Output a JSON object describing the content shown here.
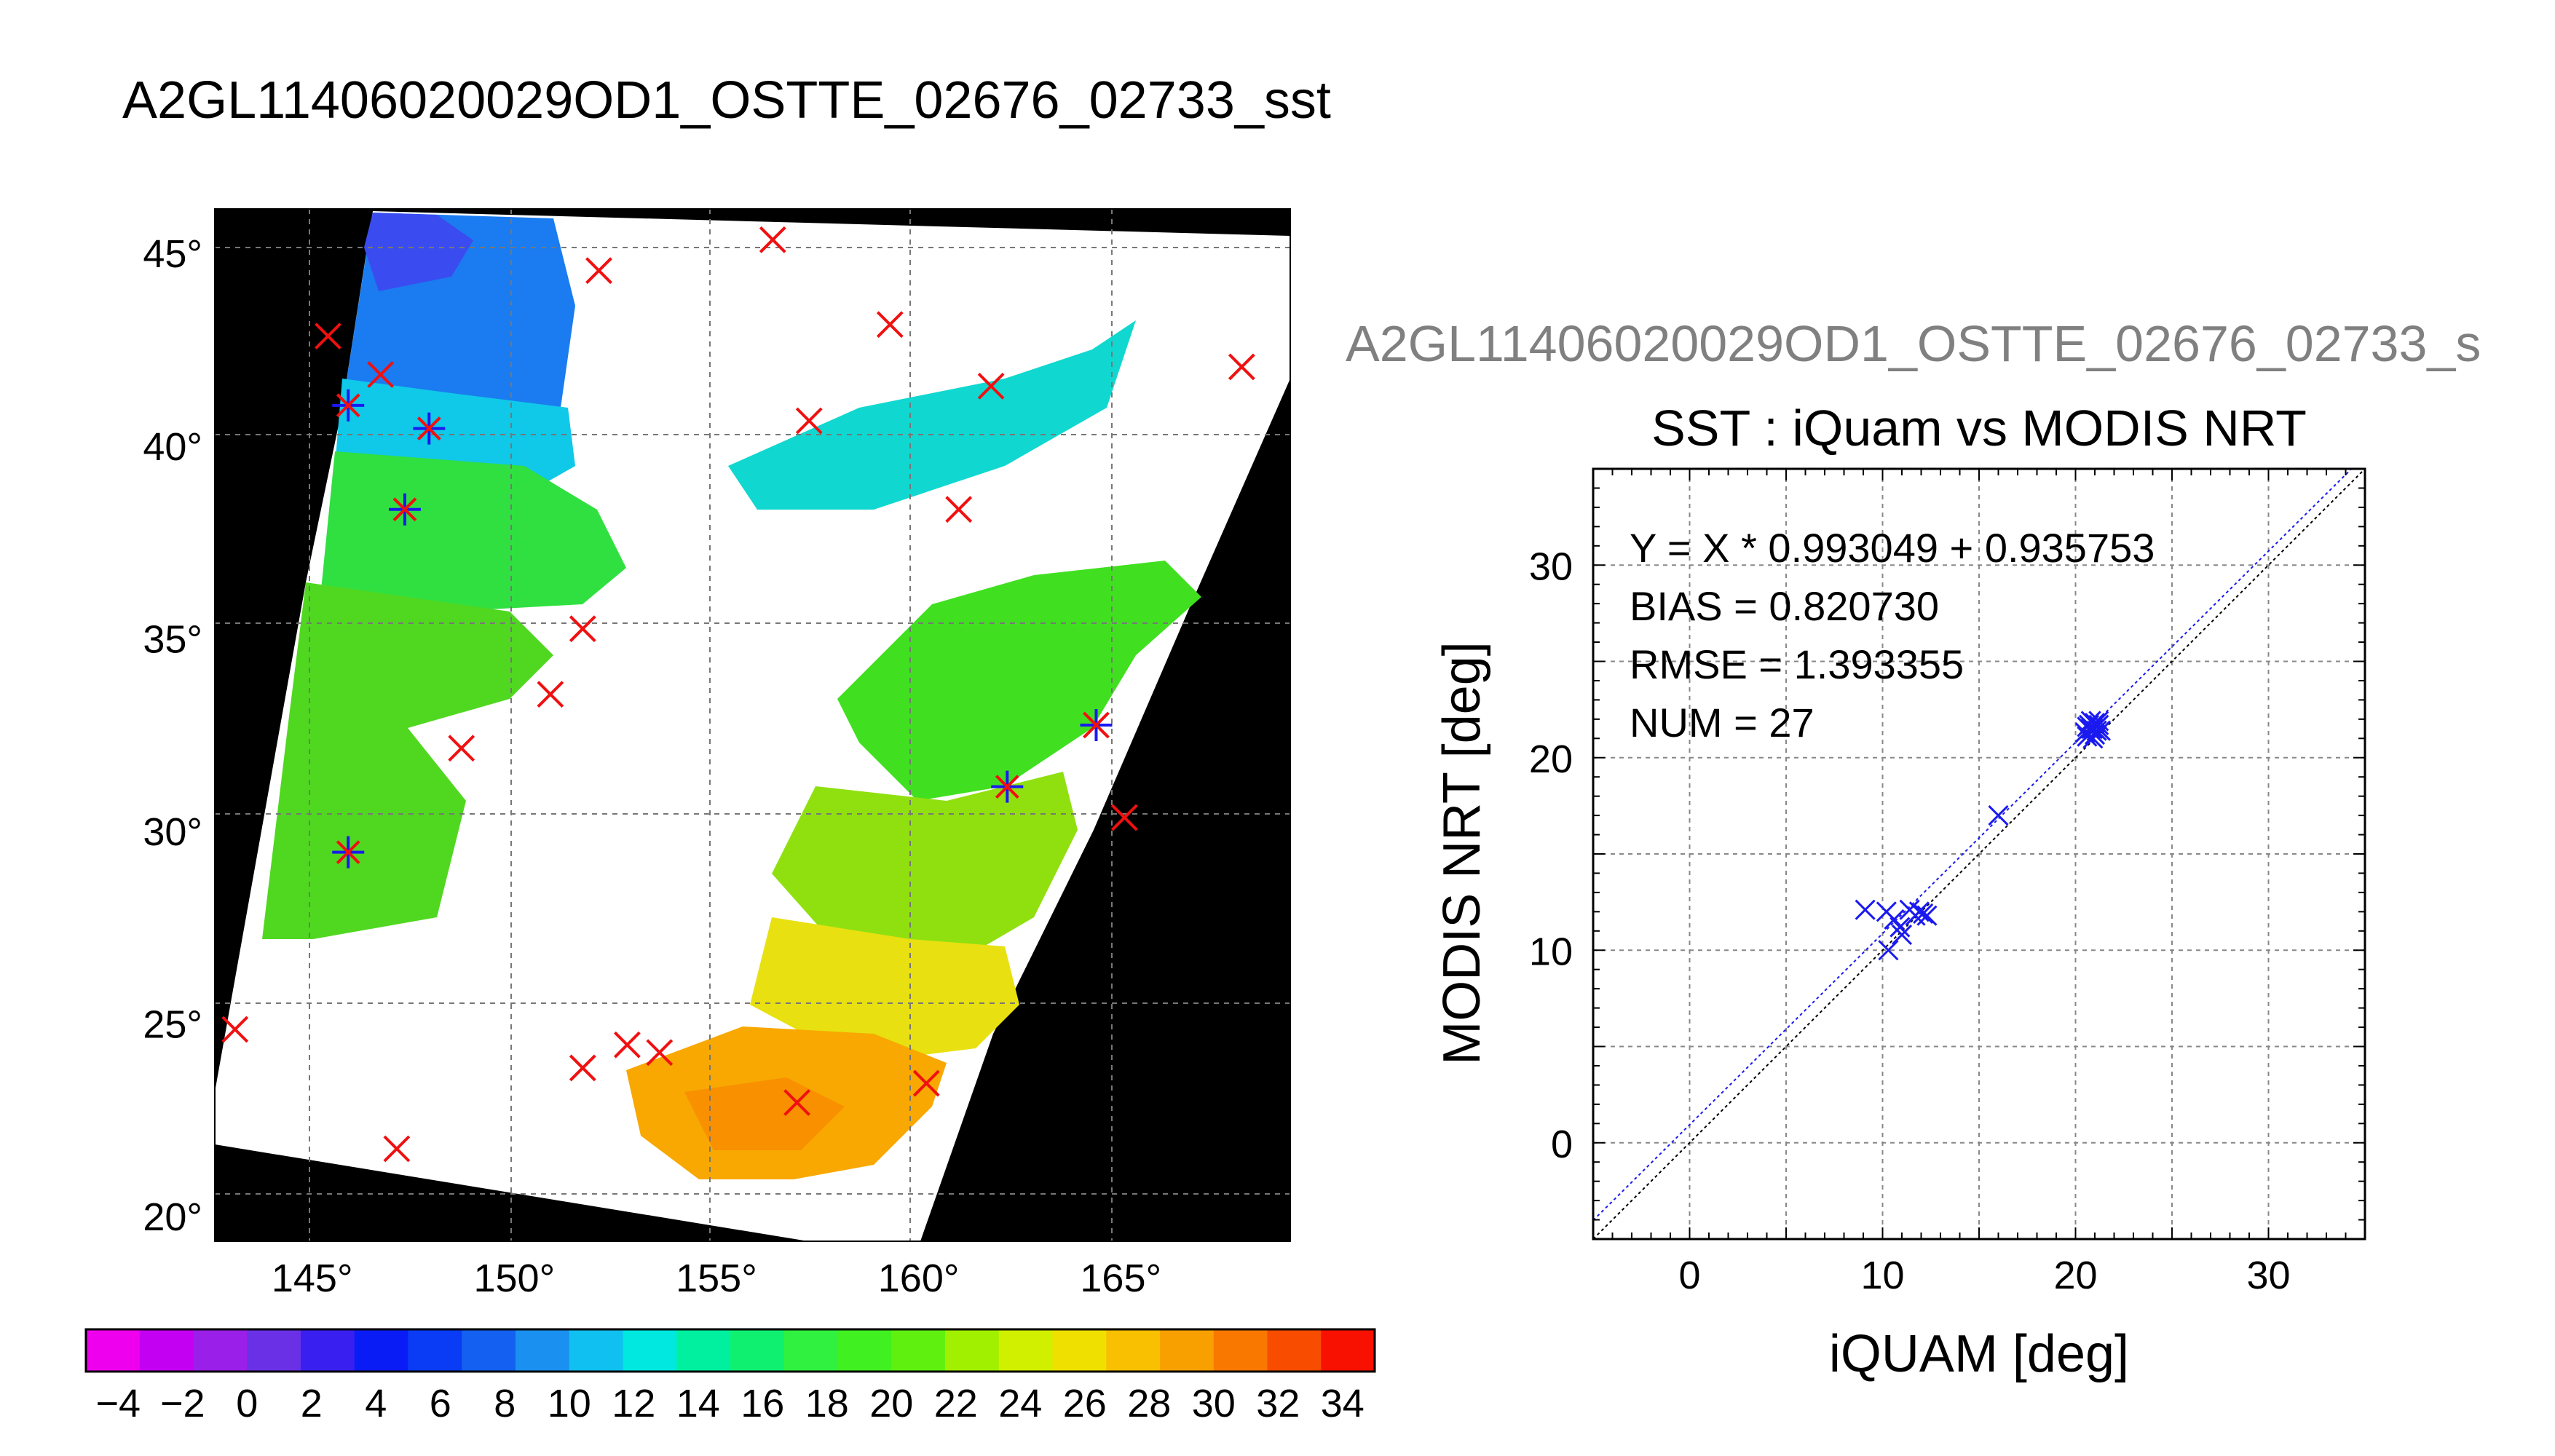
{
  "main_title": "A2GL11406020029OD1_OSTTE_02676_02733_sst",
  "map": {
    "lat_ticks": [
      45,
      40,
      35,
      30,
      25,
      20
    ],
    "lon_ticks": [
      145,
      150,
      155,
      160,
      165
    ],
    "lat_range": [
      19.3,
      46.1
    ],
    "lon_range": [
      142.7,
      169.3
    ],
    "matchups_red": [
      [
        143.2,
        24.8
      ],
      [
        145.5,
        42.8
      ],
      [
        146.8,
        41.8
      ],
      [
        147.2,
        21.7
      ],
      [
        148.8,
        32.1
      ],
      [
        151.0,
        33.5
      ],
      [
        151.8,
        35.2
      ],
      [
        151.8,
        23.8
      ],
      [
        152.2,
        44.5
      ],
      [
        152.9,
        24.4
      ],
      [
        153.7,
        24.2
      ],
      [
        156.5,
        45.3
      ],
      [
        157.1,
        22.9
      ],
      [
        157.4,
        40.6
      ],
      [
        159.4,
        43.1
      ],
      [
        160.3,
        23.4
      ],
      [
        161.1,
        38.3
      ],
      [
        161.9,
        41.5
      ],
      [
        164.5,
        32.7
      ],
      [
        165.2,
        30.3
      ],
      [
        168.1,
        42.0
      ]
    ],
    "matchups_blue": [
      [
        146.0,
        41.0
      ],
      [
        146.0,
        29.4
      ],
      [
        147.4,
        38.3
      ],
      [
        148.0,
        40.4
      ],
      [
        162.3,
        31.1
      ],
      [
        164.5,
        32.7
      ]
    ]
  },
  "colorbar": {
    "tick_labels": [
      "−4",
      "−2",
      "0",
      "2",
      "4",
      "6",
      "8",
      "10",
      "12",
      "14",
      "16",
      "18",
      "20",
      "22",
      "24",
      "26",
      "28",
      "30",
      "32",
      "34"
    ],
    "min": -5,
    "max": 35,
    "colors": [
      "#ee00ee",
      "#c400f2",
      "#9a1fe8",
      "#6a30e6",
      "#3a20f0",
      "#0a1cf5",
      "#0a3cf5",
      "#1460f0",
      "#1a90f0",
      "#10c0f0",
      "#00e8e0",
      "#00f0a0",
      "#10f070",
      "#30f040",
      "#40f020",
      "#60f010",
      "#a0f000",
      "#d0f000",
      "#f0e000",
      "#f8c000",
      "#f8a000",
      "#f87800",
      "#f84c00",
      "#f81000"
    ]
  },
  "scatter_header": "A2GL11406020029OD1_OSTTE_02676_02733_s",
  "chart_data": {
    "type": "scatter",
    "title": "SST : iQuam vs MODIS NRT",
    "xlabel": "iQUAM [deg]",
    "ylabel": "MODIS NRT [deg]",
    "xlim": [
      -5,
      35
    ],
    "ylim": [
      -5,
      35
    ],
    "x_ticks": [
      0,
      10,
      20,
      30
    ],
    "y_ticks": [
      0,
      10,
      20,
      30
    ],
    "grid": true,
    "points": [
      [
        9.1,
        12.1
      ],
      [
        10.2,
        12.0
      ],
      [
        10.6,
        11.6
      ],
      [
        10.9,
        11.2
      ],
      [
        10.3,
        10.0
      ],
      [
        11.0,
        10.8
      ],
      [
        11.4,
        12.1
      ],
      [
        11.7,
        11.8
      ],
      [
        11.9,
        12.0
      ],
      [
        12.1,
        11.9
      ],
      [
        12.3,
        11.8
      ],
      [
        16.0,
        17.0
      ],
      [
        20.5,
        21.3
      ],
      [
        20.6,
        21.6
      ],
      [
        20.7,
        21.7
      ],
      [
        20.8,
        21.9
      ],
      [
        20.9,
        21.5
      ],
      [
        21.0,
        21.8
      ],
      [
        21.0,
        21.2
      ],
      [
        21.1,
        21.6
      ],
      [
        21.2,
        21.9
      ],
      [
        21.3,
        21.4
      ],
      [
        20.6,
        21.1
      ],
      [
        20.9,
        21.0
      ],
      [
        21.2,
        21.7
      ],
      [
        20.8,
        21.5
      ],
      [
        21.1,
        21.4
      ]
    ],
    "fit": {
      "slope": 0.993049,
      "intercept": 0.935753
    },
    "stats": [
      "Y = X * 0.993049 + 0.935753",
      "BIAS = 0.820730",
      "RMSE = 1.393355",
      "NUM = 27"
    ],
    "colors": {
      "points": "#1a1af0",
      "fit_line": "#1a1af0",
      "one_to_one": "#000000"
    }
  }
}
